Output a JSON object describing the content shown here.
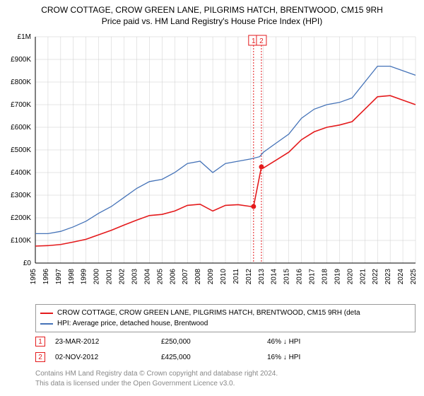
{
  "title_line1": "CROW COTTAGE, CROW GREEN LANE, PILGRIMS HATCH, BRENTWOOD, CM15 9RH",
  "title_line2": "Price paid vs. HM Land Registry's House Price Index (HPI)",
  "chart": {
    "background_color": "#ffffff",
    "grid_color": "#cccccc",
    "ylim": [
      0,
      1000000
    ],
    "ytick_step": 100000,
    "ytick_labels": [
      "£0",
      "£100K",
      "£200K",
      "£300K",
      "£400K",
      "£500K",
      "£600K",
      "£700K",
      "£800K",
      "£900K",
      "£1M"
    ],
    "x_years": [
      1995,
      1996,
      1997,
      1998,
      1999,
      2000,
      2001,
      2002,
      2003,
      2004,
      2005,
      2006,
      2007,
      2008,
      2009,
      2010,
      2011,
      2012,
      2013,
      2014,
      2015,
      2016,
      2017,
      2018,
      2019,
      2020,
      2021,
      2022,
      2023,
      2024,
      2025
    ],
    "series": {
      "hpi": {
        "label": "HPI: Average price, detached house, Brentwood",
        "color": "#4573b8",
        "line_width": 1.3,
        "points": [
          [
            1995,
            130000
          ],
          [
            1996,
            130000
          ],
          [
            1997,
            140000
          ],
          [
            1998,
            160000
          ],
          [
            1999,
            185000
          ],
          [
            2000,
            220000
          ],
          [
            2001,
            250000
          ],
          [
            2002,
            290000
          ],
          [
            2003,
            330000
          ],
          [
            2004,
            360000
          ],
          [
            2005,
            370000
          ],
          [
            2006,
            400000
          ],
          [
            2007,
            440000
          ],
          [
            2008,
            450000
          ],
          [
            2009,
            400000
          ],
          [
            2010,
            440000
          ],
          [
            2011,
            450000
          ],
          [
            2012,
            460000
          ],
          [
            2012.7,
            470000
          ],
          [
            2013,
            490000
          ],
          [
            2014,
            530000
          ],
          [
            2015,
            570000
          ],
          [
            2016,
            640000
          ],
          [
            2017,
            680000
          ],
          [
            2018,
            700000
          ],
          [
            2019,
            710000
          ],
          [
            2020,
            730000
          ],
          [
            2021,
            800000
          ],
          [
            2022,
            870000
          ],
          [
            2023,
            870000
          ],
          [
            2024,
            850000
          ],
          [
            2025,
            830000
          ]
        ]
      },
      "property": {
        "label": "CROW COTTAGE, CROW GREEN LANE, PILGRIMS HATCH, BRENTWOOD, CM15 9RH (deta",
        "color": "#e41a1c",
        "line_width": 1.6,
        "points": [
          [
            1995,
            75000
          ],
          [
            1996,
            77000
          ],
          [
            1997,
            82000
          ],
          [
            1998,
            93000
          ],
          [
            1999,
            105000
          ],
          [
            2000,
            125000
          ],
          [
            2001,
            145000
          ],
          [
            2002,
            168000
          ],
          [
            2003,
            190000
          ],
          [
            2004,
            210000
          ],
          [
            2005,
            215000
          ],
          [
            2006,
            230000
          ],
          [
            2007,
            255000
          ],
          [
            2008,
            260000
          ],
          [
            2009,
            230000
          ],
          [
            2010,
            255000
          ],
          [
            2011,
            258000
          ],
          [
            2012,
            250000
          ],
          [
            2012.22,
            250000
          ],
          [
            2012.84,
            425000
          ],
          [
            2013,
            420000
          ],
          [
            2014,
            455000
          ],
          [
            2015,
            490000
          ],
          [
            2016,
            545000
          ],
          [
            2017,
            580000
          ],
          [
            2018,
            600000
          ],
          [
            2019,
            610000
          ],
          [
            2020,
            625000
          ],
          [
            2021,
            680000
          ],
          [
            2022,
            735000
          ],
          [
            2023,
            740000
          ],
          [
            2024,
            720000
          ],
          [
            2025,
            700000
          ]
        ]
      }
    },
    "markers": [
      {
        "num": "1",
        "x": 2012.22,
        "y": 250000
      },
      {
        "num": "2",
        "x": 2012.84,
        "y": 425000
      }
    ]
  },
  "transactions": [
    {
      "num": "1",
      "date": "23-MAR-2012",
      "price": "£250,000",
      "comparison": "46% ↓ HPI"
    },
    {
      "num": "2",
      "date": "02-NOV-2012",
      "price": "£425,000",
      "comparison": "16% ↓ HPI"
    }
  ],
  "footer_line1": "Contains HM Land Registry data © Crown copyright and database right 2024.",
  "footer_line2": "This data is licensed under the Open Government Licence v3.0."
}
